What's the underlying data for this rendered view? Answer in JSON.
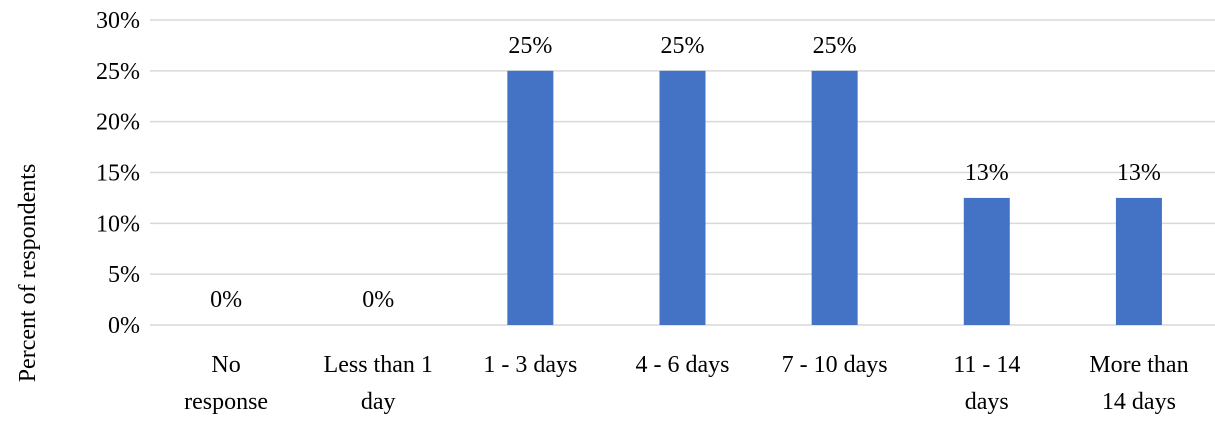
{
  "chart_data": {
    "type": "bar",
    "categories": [
      [
        "No",
        "response"
      ],
      [
        "Less than 1",
        "day"
      ],
      [
        "1 - 3 days"
      ],
      [
        "4 - 6 days"
      ],
      [
        "7 - 10 days"
      ],
      [
        "11 - 14",
        "days"
      ],
      [
        "More than",
        "14 days"
      ]
    ],
    "values": [
      0,
      0,
      25,
      25,
      25,
      12.5,
      12.5
    ],
    "data_labels": [
      "0%",
      "0%",
      "25%",
      "25%",
      "25%",
      "13%",
      "13%"
    ],
    "title": "",
    "xlabel": "",
    "ylabel": "Percent of respondents",
    "ylim": [
      0,
      30
    ],
    "yticks": [
      0,
      5,
      10,
      15,
      20,
      25,
      30
    ],
    "ytick_labels": [
      "0%",
      "5%",
      "10%",
      "15%",
      "20%",
      "25%",
      "30%"
    ],
    "grid": true,
    "legend": "none",
    "colors": {
      "bar": "#4472C4",
      "grid": "#D9D9D9",
      "text": "#000000"
    }
  }
}
